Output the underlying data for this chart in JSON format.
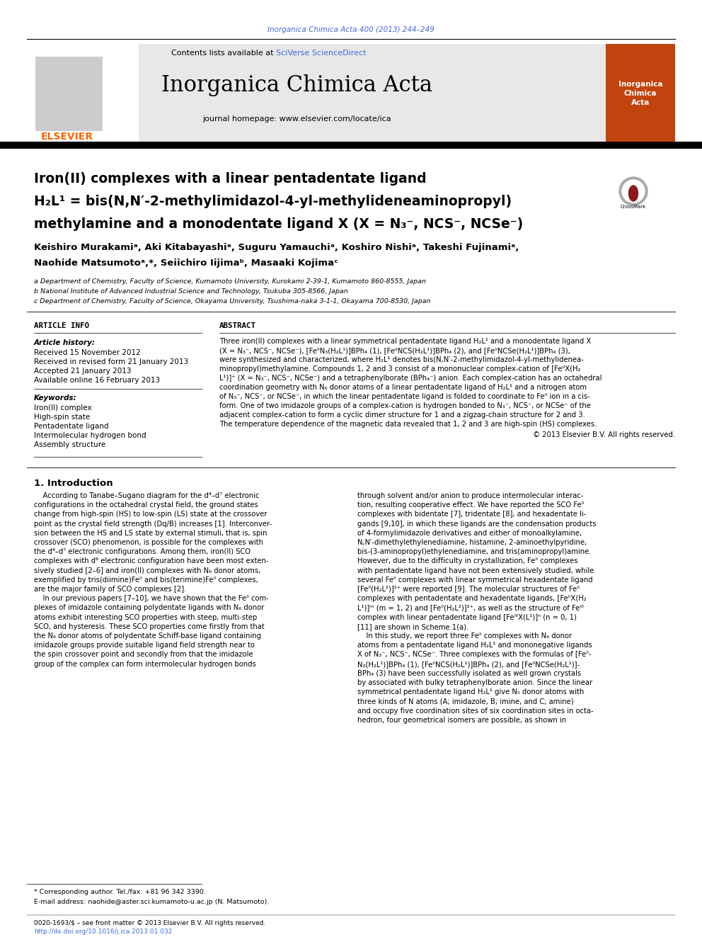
{
  "page_bg": "#ffffff",
  "top_journal_ref": "Inorganica Chimica Acta 400 (2013) 244–249",
  "top_journal_ref_color": "#4169E1",
  "header_bg": "#e8e8e8",
  "header_journal_name": "Inorganica Chimica Acta",
  "header_contents_text": "Contents lists available at ",
  "header_sciverse": "SciVerse ScienceDirect",
  "header_homepage": "journal homepage: www.elsevier.com/locate/ica",
  "elsevier_color": "#FF6600",
  "title_line1": "Iron(II) complexes with a linear pentadentate ligand",
  "title_line2": "H₂L¹ = bis(N,N′-2-methylimidazol-4-yl-methylideneaminopropyl)",
  "title_line3": "methylamine and a monodentate ligand X (X = N₃⁻, NCS⁻, NCSe⁻)",
  "article_info_title": "ARTICLE INFO",
  "abstract_title": "ABSTRACT",
  "article_history_label": "Article history:",
  "received1": "Received 15 November 2012",
  "received2": "Received in revised form 21 January 2013",
  "accepted": "Accepted 21 January 2013",
  "available": "Available online 16 February 2013",
  "keywords_label": "Keywords:",
  "keyword1": "Iron(II) complex",
  "keyword2": "High-spin state",
  "keyword3": "Pentadentate ligand",
  "keyword4": "Intermolecular hydrogen bond",
  "keyword5": "Assembly structure",
  "copyright": "© 2013 Elsevier B.V. All rights reserved.",
  "intro_title": "1. Introduction",
  "footer_issn": "0020-1693/$ – see front matter © 2013 Elsevier B.V. All rights reserved.",
  "footer_doi": "http://dx.doi.org/10.1016/j.ica.2013.01.032",
  "affil_a": "a Department of Chemistry, Faculty of Science, Kumamoto University, Kurokami 2-39-1, Kumamoto 860-8555, Japan",
  "affil_b": "b National Institute of Advanced Industrial Science and Technology, Tsukuba 305-8566, Japan",
  "affil_c": "c Department of Chemistry, Faculty of Science, Okayama University, Tsushima-naka 3-1-1, Okayama 700-8530, Japan",
  "sciverse_color": "#4169E1",
  "doi_color": "#4169E1",
  "red_box_color": "#C1440E",
  "black_bar_color": "#000000"
}
